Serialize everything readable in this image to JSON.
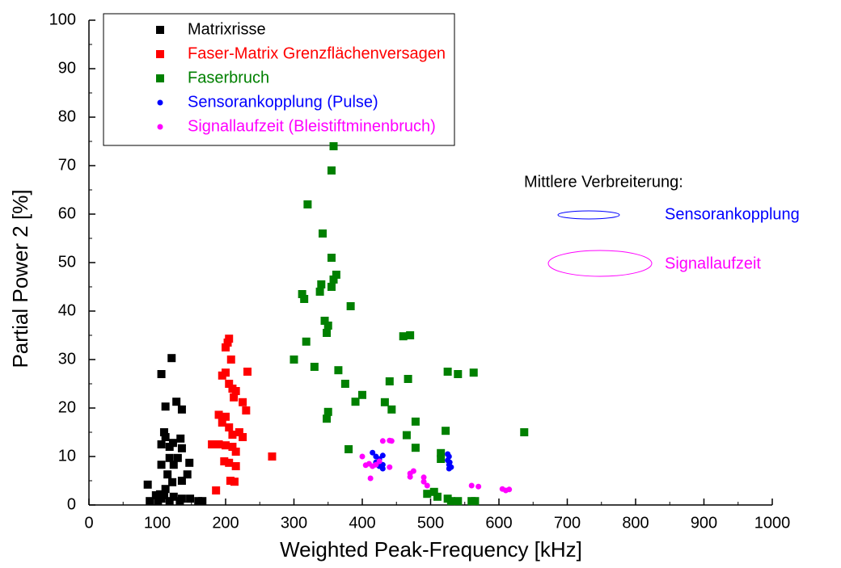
{
  "chart_data": {
    "type": "scatter",
    "x_label": "Weighted Peak-Frequency [kHz]",
    "y_label": "Partial Power 2 [%]",
    "xlim": [
      0,
      1000
    ],
    "xticks": [
      0,
      100,
      200,
      300,
      400,
      500,
      600,
      700,
      800,
      900,
      1000
    ],
    "ylim": [
      0,
      100
    ],
    "yticks": [
      0,
      10,
      20,
      30,
      40,
      50,
      60,
      70,
      80,
      90,
      100
    ],
    "annotations": [
      "Mittlere Verbreiterung:",
      "Sensorankopplung",
      "Signallaufzeit"
    ],
    "series": [
      {
        "name": "Matrixrisse",
        "color": "#000000",
        "marker": "square",
        "x": [
          121,
          106,
          112,
          128,
          136,
          110,
          112,
          134,
          123,
          106,
          118,
          136,
          106,
          130,
          118,
          147,
          124,
          86,
          115,
          144,
          136,
          122,
          112,
          98,
          104,
          110,
          124,
          136,
          148,
          160,
          89,
          101,
          118,
          133,
          106,
          166
        ],
        "y": [
          30.3,
          27,
          20.3,
          21.3,
          19.7,
          15,
          14,
          13.7,
          12.8,
          12.5,
          12,
          11.7,
          8.3,
          9.7,
          9.7,
          8.7,
          8.3,
          4.2,
          6.3,
          6.3,
          5,
          4.7,
          3.3,
          2,
          2.2,
          2,
          1.7,
          1.3,
          1.3,
          0.8,
          0.8,
          0.8,
          0.8,
          0.8,
          1.3,
          0.8
        ]
      },
      {
        "name": "Faser-Matrix Grenzflächenversagen",
        "color": "#ff0000",
        "marker": "square",
        "x": [
          205,
          203,
          200,
          208,
          200,
          195,
          232,
          205,
          210,
          215,
          212,
          225,
          230,
          190,
          200,
          195,
          205,
          210,
          220,
          225,
          190,
          200,
          180,
          210,
          215,
          198,
          205,
          215,
          268,
          207,
          213,
          186
        ],
        "y": [
          34.3,
          33.5,
          32.5,
          30,
          27.3,
          26.7,
          27.5,
          25,
          24,
          23.5,
          22.2,
          21.2,
          19.5,
          18.6,
          18.2,
          17,
          16,
          14.5,
          15,
          14,
          12.5,
          12.3,
          12.5,
          12,
          11,
          9,
          8.7,
          8,
          10,
          5,
          4.8,
          3
        ]
      },
      {
        "name": "Faserbruch",
        "color": "#008000",
        "marker": "square",
        "x": [
          358,
          355,
          320,
          342,
          355,
          362,
          358,
          340,
          355,
          338,
          312,
          315,
          383,
          345,
          350,
          348,
          460,
          470,
          318,
          300,
          330,
          365,
          375,
          467,
          440,
          525,
          540,
          563,
          400,
          390,
          433,
          443,
          350,
          348,
          478,
          522,
          637,
          465,
          380,
          478,
          515,
          515,
          495,
          505,
          510,
          525,
          530,
          540,
          560,
          565
        ],
        "y": [
          74,
          69,
          62,
          56,
          51,
          47.5,
          46.5,
          45.5,
          45,
          44,
          43.5,
          42.5,
          41,
          38,
          37,
          35.5,
          34.8,
          35,
          33.7,
          30,
          28.5,
          27.8,
          25,
          26,
          25.5,
          27.5,
          27,
          27.3,
          22.7,
          21.3,
          21.2,
          19.7,
          19.2,
          17.8,
          17.2,
          15.3,
          15,
          14.4,
          11.5,
          11.8,
          10.7,
          9.5,
          2.3,
          2.7,
          1.7,
          1.3,
          0.8,
          0.8,
          0.8,
          0.8
        ]
      },
      {
        "name": "Sensorankopplung (Pulse)",
        "color": "#0000ff",
        "marker": "circle",
        "x": [
          415,
          420,
          425,
          430,
          420,
          430,
          425,
          430,
          525,
          527,
          525,
          528,
          527,
          530,
          527
        ],
        "y": [
          10.8,
          10,
          9.5,
          10.2,
          8.8,
          8.3,
          8,
          7.5,
          10.5,
          10,
          9.2,
          8.8,
          8.3,
          7.8,
          7.5
        ]
      },
      {
        "name": "Signallaufzeit (Bleistiftminenbruch)",
        "color": "#ff00ff",
        "marker": "circle",
        "x": [
          400,
          405,
          410,
          415,
          420,
          425,
          430,
          440,
          443,
          412,
          440,
          470,
          470,
          490,
          490,
          495,
          560,
          570,
          605,
          610,
          615,
          475
        ],
        "y": [
          10,
          8.2,
          8.5,
          8,
          8.3,
          9,
          13.2,
          13.3,
          13.2,
          5.5,
          7.8,
          6.5,
          5.8,
          5.7,
          4.8,
          4,
          4,
          3.8,
          3.3,
          3,
          3.2,
          7
        ]
      }
    ]
  }
}
